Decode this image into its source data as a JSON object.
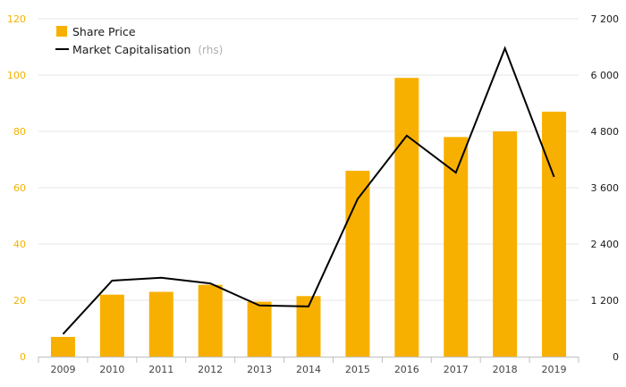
{
  "chart_data": {
    "type": "bar",
    "categories": [
      "2009",
      "2010",
      "2011",
      "2012",
      "2013",
      "2014",
      "2015",
      "2016",
      "2017",
      "2018",
      "2019"
    ],
    "series": [
      {
        "name": "Share Price",
        "type": "bar",
        "axis": "left",
        "color": "#f8b000",
        "values": [
          7,
          22,
          23,
          25.5,
          19.5,
          21.5,
          66,
          99,
          78,
          80,
          87
        ]
      },
      {
        "name": "Market Capitalisation",
        "type": "line",
        "axis": "right",
        "color": "#000000",
        "values": [
          480,
          1620,
          1680,
          1560,
          1090,
          1070,
          3360,
          4710,
          3920,
          6570,
          3830
        ]
      }
    ],
    "legend": {
      "share_price": "Share Price",
      "market_cap": "Market Capitalisation",
      "market_cap_note": "(rhs)",
      "placement": "top-left"
    },
    "y_left": {
      "ylim": [
        0,
        120
      ],
      "ticks": [
        "0",
        "20",
        "40",
        "60",
        "80",
        "100",
        "120"
      ],
      "color": "#f2b200"
    },
    "y_right": {
      "ylim": [
        0,
        7200
      ],
      "ticks": [
        "0",
        "1 200",
        "2 400",
        "3 600",
        "4 800",
        "6 000",
        "7 200"
      ],
      "color": "#1a1a1a"
    },
    "grid": true
  }
}
